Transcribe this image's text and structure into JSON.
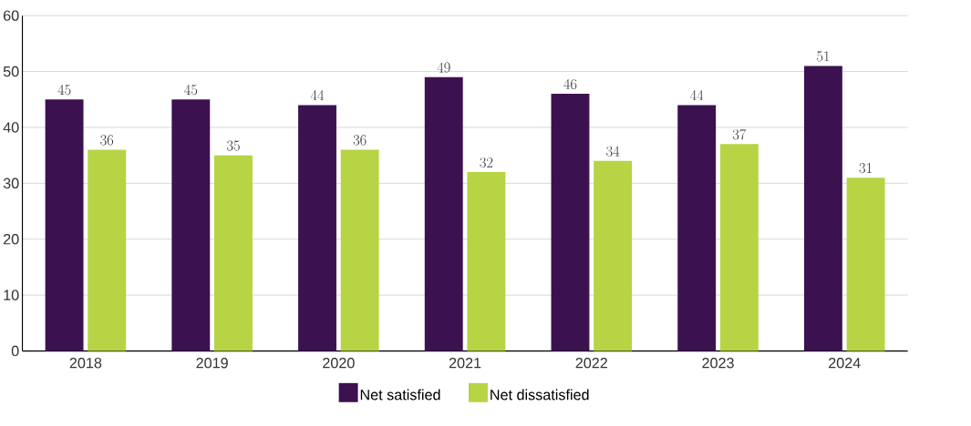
{
  "chart_data": {
    "type": "bar",
    "categories": [
      "2018",
      "2019",
      "2020",
      "2021",
      "2022",
      "2023",
      "2024"
    ],
    "series": [
      {
        "name": "Net satisfied",
        "color": "#3c1150",
        "values": [
          45,
          45,
          44,
          49,
          46,
          44,
          51
        ]
      },
      {
        "name": "Net dissatisfied",
        "color": "#b6d443",
        "values": [
          36,
          35,
          36,
          32,
          34,
          37,
          31
        ]
      }
    ],
    "ylim": [
      0,
      60
    ],
    "yticks": [
      0,
      10,
      20,
      30,
      40,
      50,
      60
    ],
    "grid": "y",
    "legend": "bottom",
    "data_labels": true
  }
}
